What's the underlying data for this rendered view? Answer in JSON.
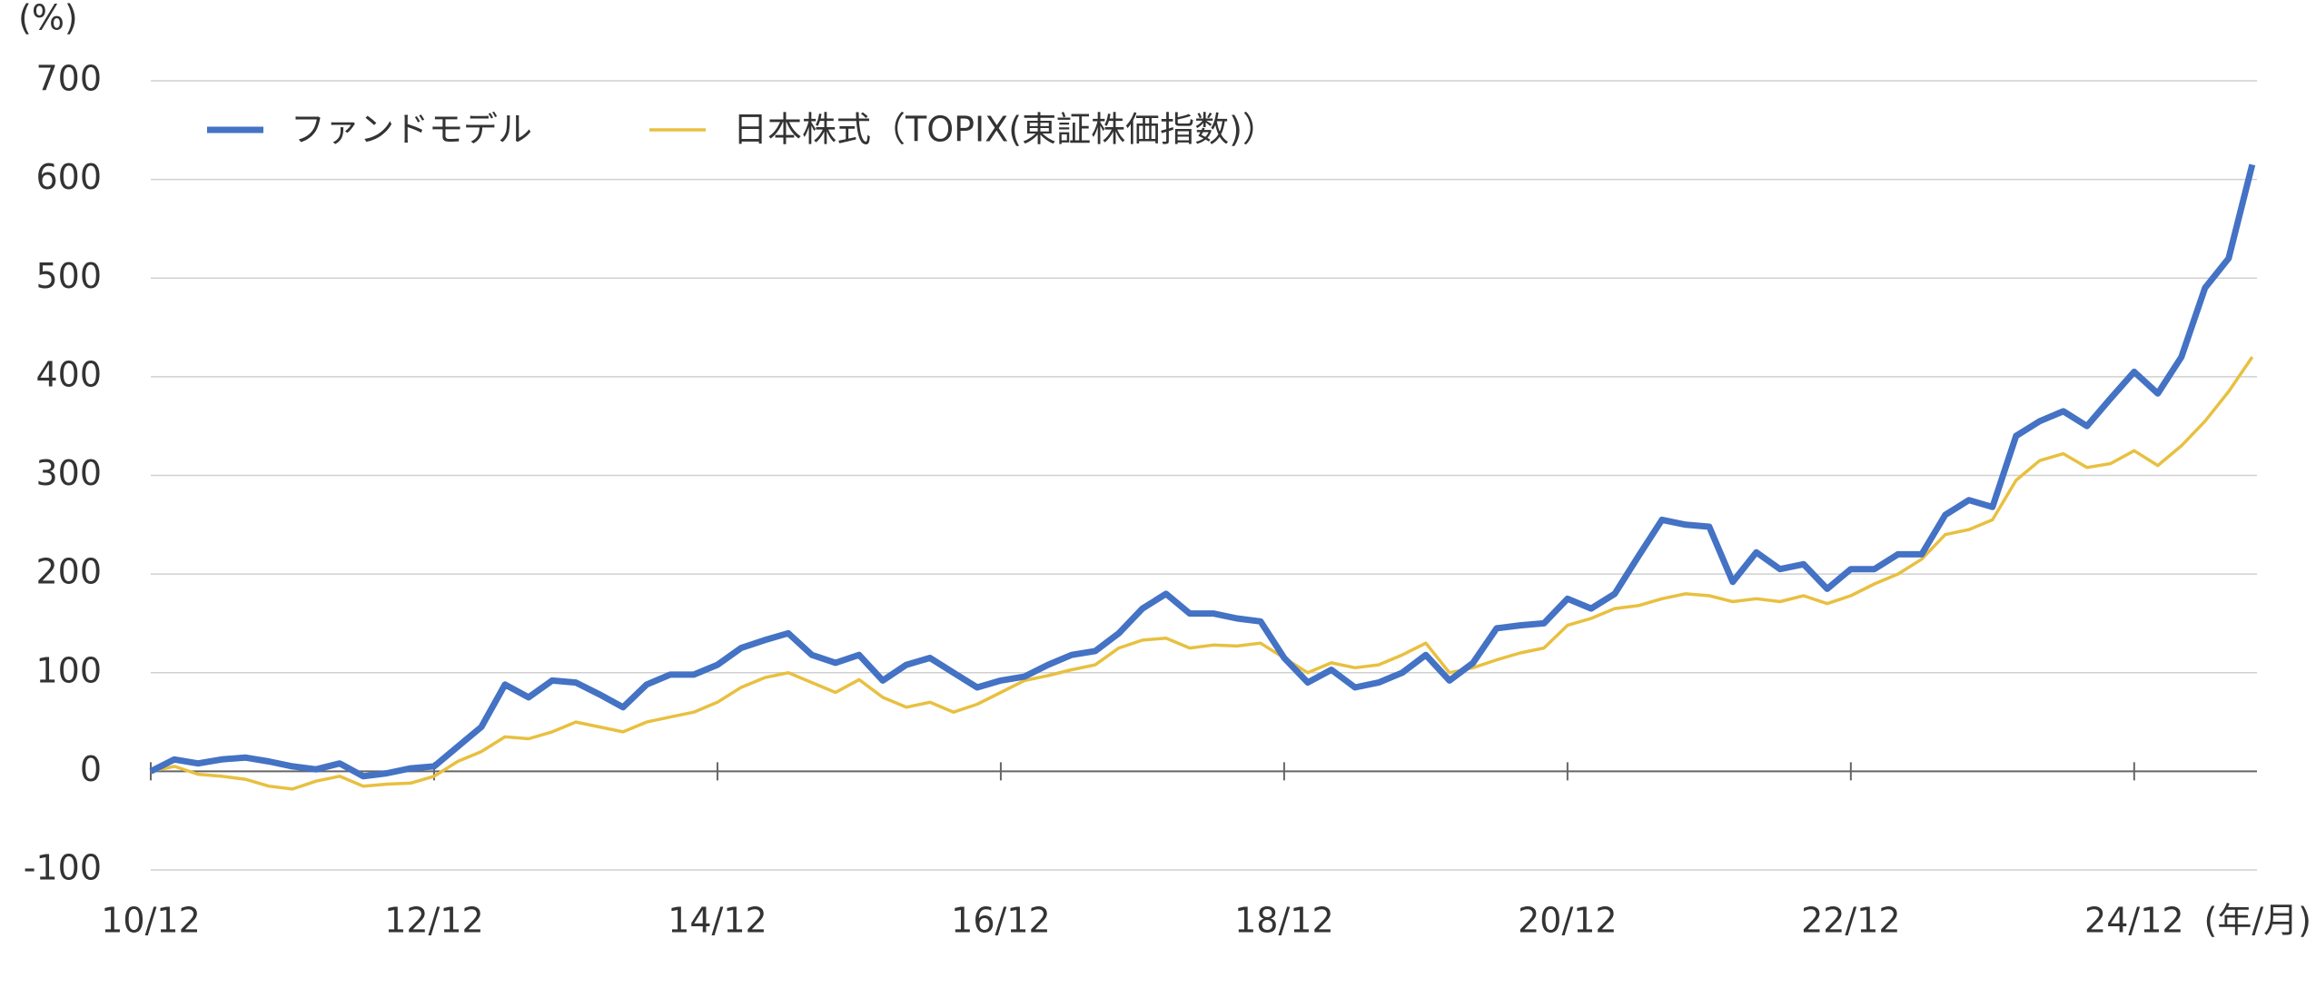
{
  "chart_data": {
    "type": "line",
    "y_unit_label": "(%)",
    "x_unit_label": "(年/月)",
    "categories": [
      "10/12",
      null,
      null,
      null,
      null,
      null,
      null,
      null,
      null,
      null,
      null,
      null,
      "12/12",
      null,
      null,
      null,
      null,
      null,
      null,
      null,
      null,
      null,
      null,
      null,
      "14/12",
      null,
      null,
      null,
      null,
      null,
      null,
      null,
      null,
      null,
      null,
      null,
      "16/12",
      null,
      null,
      null,
      null,
      null,
      null,
      null,
      null,
      null,
      null,
      null,
      "18/12",
      null,
      null,
      null,
      null,
      null,
      null,
      null,
      null,
      null,
      null,
      null,
      "20/12",
      null,
      null,
      null,
      null,
      null,
      null,
      null,
      null,
      null,
      null,
      null,
      "22/12",
      null,
      null,
      null,
      null,
      null,
      null,
      null,
      null,
      null,
      null,
      null,
      "24/12",
      null,
      null,
      null,
      null,
      null
    ],
    "series": [
      {
        "name": "ファンドモデル",
        "color": "#4472c4",
        "values": [
          0,
          12,
          8,
          12,
          14,
          10,
          5,
          2,
          8,
          -5,
          -2,
          3,
          5,
          25,
          45,
          88,
          75,
          92,
          90,
          78,
          65,
          88,
          98,
          98,
          108,
          125,
          133,
          140,
          118,
          110,
          118,
          92,
          108,
          115,
          100,
          85,
          92,
          96,
          108,
          118,
          122,
          140,
          165,
          180,
          160,
          160,
          155,
          152,
          115,
          90,
          103,
          85,
          90,
          100,
          118,
          92,
          110,
          145,
          148,
          150,
          175,
          165,
          180,
          218,
          255,
          250,
          248,
          192,
          222,
          205,
          210,
          185,
          205,
          205,
          220,
          220,
          260,
          275,
          268,
          340,
          355,
          365,
          350,
          378,
          405,
          383,
          420,
          490,
          520,
          615
        ]
      },
      {
        "name": "日本株式（TOPIX(東証株価指数)）",
        "color": "#e8c040",
        "values": [
          0,
          5,
          -3,
          -5,
          -8,
          -15,
          -18,
          -10,
          -5,
          -15,
          -13,
          -12,
          -5,
          10,
          20,
          35,
          33,
          40,
          50,
          45,
          40,
          50,
          55,
          60,
          70,
          85,
          95,
          100,
          90,
          80,
          93,
          75,
          65,
          70,
          60,
          68,
          80,
          92,
          97,
          103,
          108,
          125,
          133,
          135,
          125,
          128,
          127,
          130,
          115,
          100,
          110,
          105,
          108,
          118,
          130,
          100,
          105,
          113,
          120,
          125,
          148,
          155,
          165,
          168,
          175,
          180,
          178,
          172,
          175,
          172,
          178,
          170,
          178,
          190,
          200,
          215,
          240,
          245,
          255,
          295,
          315,
          322,
          308,
          312,
          325,
          310,
          330,
          355,
          385,
          420
        ]
      }
    ],
    "ylim": [
      -100,
      700
    ],
    "yticks": [
      -100,
      0,
      100,
      200,
      300,
      400,
      500,
      600,
      700
    ],
    "grid": true
  }
}
